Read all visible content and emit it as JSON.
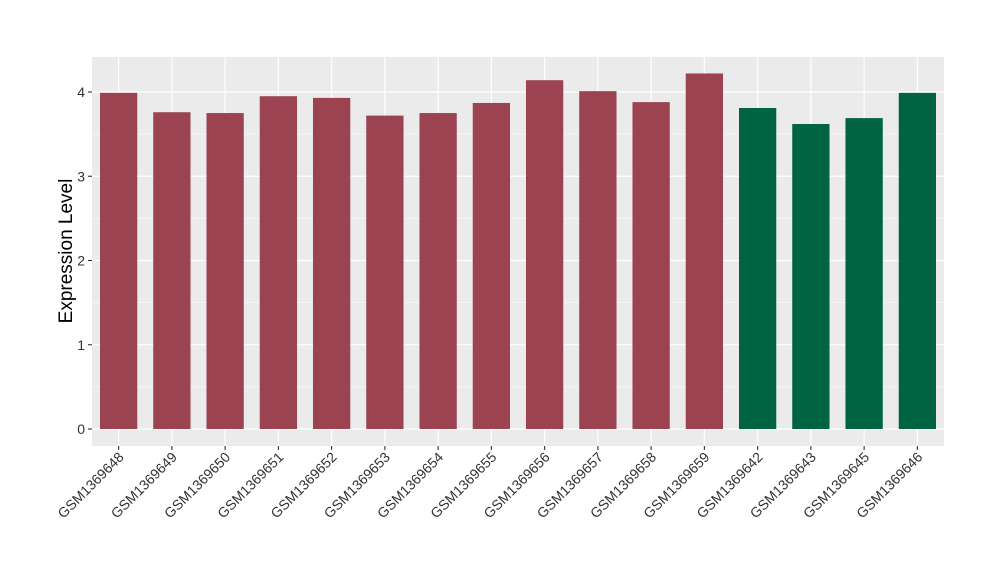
{
  "chart_data": {
    "type": "bar",
    "ylabel": "Expression Level",
    "xlabel": "",
    "ylim": [
      -0.2,
      4.4
    ],
    "yticks": [
      0,
      1,
      2,
      3,
      4
    ],
    "ytick_labels": [
      "0",
      "1",
      "2",
      "3",
      "4"
    ],
    "grid": true,
    "legend": "none",
    "colors": {
      "group1": "#9b4350",
      "group2": "#006443",
      "panel": "#ebebeb",
      "grid": "#ffffff"
    },
    "categories": [
      "GSM1369648",
      "GSM1369649",
      "GSM1369650",
      "GSM1369651",
      "GSM1369652",
      "GSM1369653",
      "GSM1369654",
      "GSM1369655",
      "GSM1369656",
      "GSM1369657",
      "GSM1369658",
      "GSM1369659",
      "GSM1369642",
      "GSM1369643",
      "GSM1369645",
      "GSM1369646"
    ],
    "values": [
      3.99,
      3.76,
      3.75,
      3.95,
      3.93,
      3.72,
      3.75,
      3.87,
      4.14,
      4.01,
      3.88,
      4.22,
      3.81,
      3.62,
      3.69,
      3.99
    ],
    "bar_groups": [
      1,
      1,
      1,
      1,
      1,
      1,
      1,
      1,
      1,
      1,
      1,
      1,
      2,
      2,
      2,
      2
    ]
  }
}
